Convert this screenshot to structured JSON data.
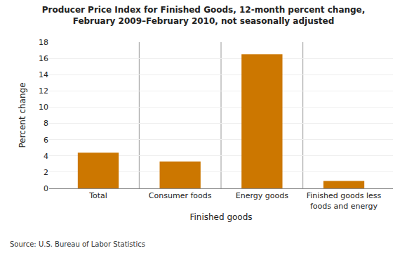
{
  "chart_data": {
    "type": "bar",
    "title": "Producer Price Index for Finished Goods, 12-month percent change,\nFebruary 2009–February 2010, not seasonally adjusted",
    "categories": [
      "Total",
      "Consumer foods",
      "Energy goods",
      "Finished goods less\nfoods and energy"
    ],
    "values": [
      4.4,
      3.3,
      16.5,
      0.9
    ],
    "color": "#CC7700",
    "xlabel": "Finished goods",
    "ylabel": "Percent change",
    "ylim": [
      0,
      18
    ],
    "yticks": [
      0,
      2,
      4,
      6,
      8,
      10,
      12,
      14,
      16,
      18
    ],
    "grid": true,
    "source": "Source: U.S. Bureau of Labor Statistics"
  }
}
